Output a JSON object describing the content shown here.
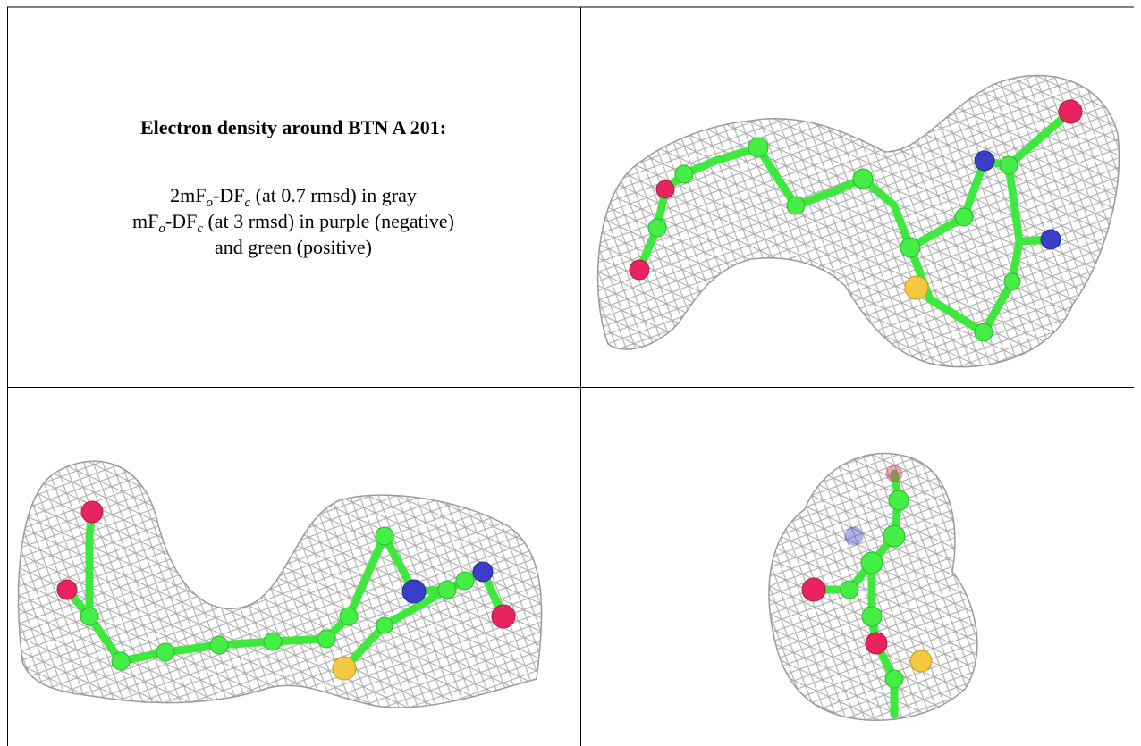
{
  "title": "Electron density around BTN A 201:",
  "legend": {
    "lines": [
      [
        "2mF",
        "o",
        "-DF",
        "c",
        " (at 0.7 rmsd) in gray"
      ],
      [
        "mF",
        "o",
        "-DF",
        "c",
        " (at 3 rmsd) in purple (negative)"
      ],
      [
        "and green (positive)"
      ]
    ]
  }
}
